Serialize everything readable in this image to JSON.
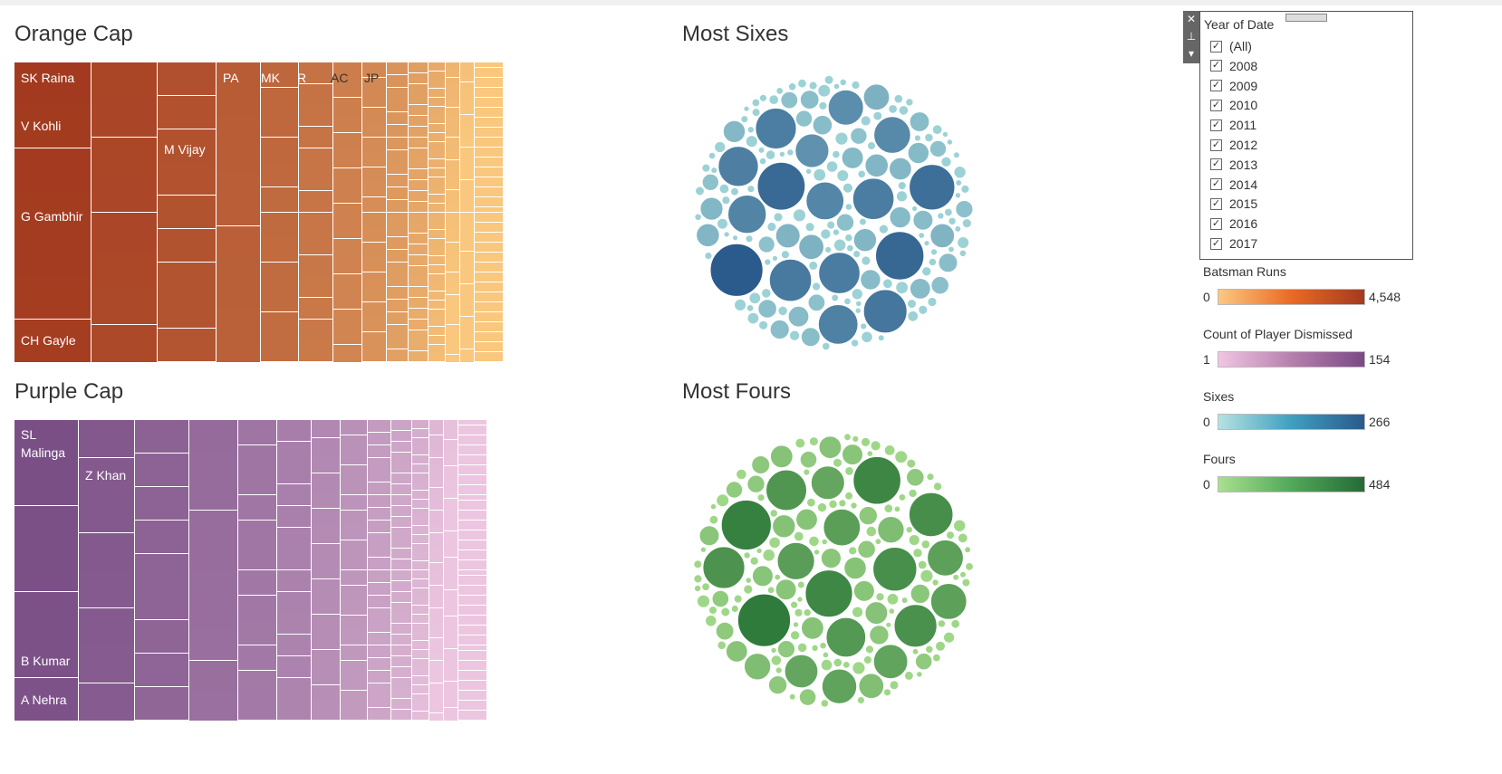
{
  "sheets": {
    "orange_cap": {
      "title": "Orange Cap"
    },
    "purple_cap": {
      "title": "Purple Cap"
    },
    "most_sixes": {
      "title": "Most Sixes"
    },
    "most_fours": {
      "title": "Most Fours"
    }
  },
  "orange_cap": {
    "color_from": "#f9c77d",
    "color_to": "#a33a1f",
    "labels": [
      "SK Raina",
      "V Kohli",
      "G Gambhir",
      "CH Gayle",
      "M Vijay",
      "PA",
      "MK",
      "R",
      "AC",
      "JP"
    ]
  },
  "purple_cap": {
    "color_from": "#ecc6e0",
    "color_to": "#7a4f86",
    "labels": [
      "SL\nMalinga",
      "Z Khan",
      "B Kumar",
      "A Nehra"
    ]
  },
  "most_sixes": {
    "color_from": "#a6dcdc",
    "color_to": "#2a5a8c"
  },
  "most_fours": {
    "color_from": "#a9df8f",
    "color_to": "#2e7a3a"
  },
  "filter": {
    "title": "Year of Date",
    "options": [
      {
        "label": "(All)",
        "checked": true
      },
      {
        "label": "2008",
        "checked": true
      },
      {
        "label": "2009",
        "checked": true
      },
      {
        "label": "2010",
        "checked": true
      },
      {
        "label": "2011",
        "checked": true
      },
      {
        "label": "2012",
        "checked": true
      },
      {
        "label": "2013",
        "checked": true
      },
      {
        "label": "2014",
        "checked": true
      },
      {
        "label": "2015",
        "checked": true
      },
      {
        "label": "2016",
        "checked": true
      },
      {
        "label": "2017",
        "checked": true
      }
    ],
    "check_glyph": "✓",
    "close_icon": "close-icon",
    "pin_icon": "pin-icon",
    "menu_icon": "dropdown-arrow-icon"
  },
  "legends": [
    {
      "title": "Batsman Runs",
      "min": "0",
      "max": "4,548",
      "from": "#fbc880",
      "mid": "#ea6a24",
      "to": "#a33a1f"
    },
    {
      "title": "Count of Player Dismissed",
      "min": "1",
      "max": "154",
      "from": "#f0c6e4",
      "mid": "#b680ad",
      "to": "#7a4a86"
    },
    {
      "title": "Sixes",
      "min": "0",
      "max": "266",
      "from": "#b5e2e0",
      "mid": "#3f9fc0",
      "to": "#2a5a8c"
    },
    {
      "title": "Fours",
      "min": "0",
      "max": "484",
      "from": "#a8e08e",
      "mid": "#52a85a",
      "to": "#256b38"
    }
  ]
}
